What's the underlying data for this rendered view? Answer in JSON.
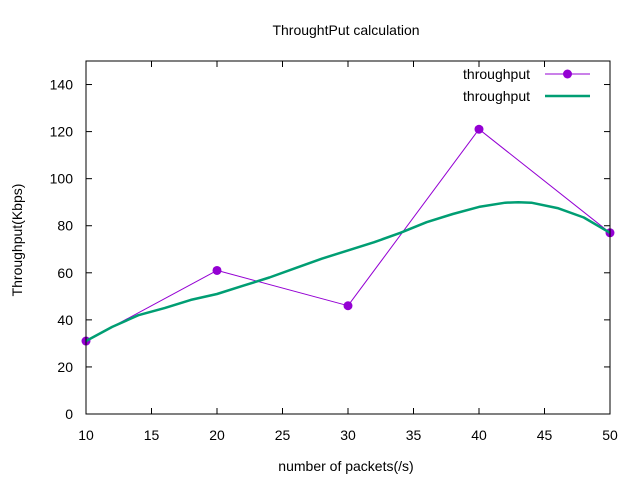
{
  "chart_data": {
    "type": "line",
    "title": "ThroughtPut calculation",
    "xlabel": "number of packets(/s)",
    "ylabel": "Throughput(Kbps)",
    "xlim": [
      10,
      50
    ],
    "ylim": [
      0,
      150
    ],
    "xticks": [
      10,
      15,
      20,
      25,
      30,
      35,
      40,
      45,
      50
    ],
    "yticks": [
      0,
      20,
      40,
      60,
      80,
      100,
      120,
      140
    ],
    "grid": false,
    "legend_position": "top-right",
    "series": [
      {
        "name": "throughput",
        "style": "linespoints",
        "color": "#9400D3",
        "x": [
          10,
          20,
          30,
          40,
          50
        ],
        "y": [
          31,
          61,
          46,
          121,
          77
        ]
      },
      {
        "name": "throughput",
        "style": "smooth-line",
        "color": "#009E73",
        "x": [
          10,
          12,
          14,
          16,
          18,
          20,
          22,
          24,
          26,
          28,
          30,
          32,
          34,
          36,
          38,
          40,
          42,
          43,
          44,
          46,
          48,
          50
        ],
        "y": [
          31,
          37,
          42,
          45,
          48.5,
          51,
          54.5,
          58,
          62,
          66,
          69.5,
          73,
          77,
          81.5,
          85,
          88,
          89.8,
          90,
          89.8,
          87.5,
          83.5,
          77
        ]
      }
    ]
  }
}
